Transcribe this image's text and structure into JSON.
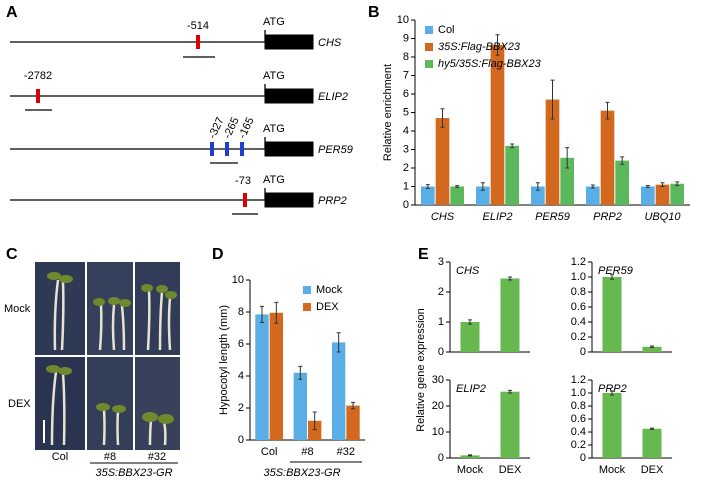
{
  "panel_labels": [
    "A",
    "B",
    "C",
    "D",
    "E"
  ],
  "gene_diagram": {
    "rows": [
      {
        "gene": "CHS",
        "start": "ATG",
        "sites": [
          "-514"
        ]
      },
      {
        "gene": "ELIP2",
        "start": "ATG",
        "sites": [
          "-2782"
        ]
      },
      {
        "gene": "PER59",
        "start": "ATG",
        "sites": [
          "-327",
          "-265",
          "-165"
        ]
      },
      {
        "gene": "PRP2",
        "start": "ATG",
        "sites": [
          "-73"
        ]
      }
    ]
  },
  "seedling_photos": {
    "rows": [
      "Mock",
      "DEX"
    ],
    "columns": [
      "Col",
      "#8",
      "#32"
    ],
    "group_label": "35S:BBX23-GR"
  },
  "panel_e_ylabel": "Relative gene expression",
  "chart_data": [
    {
      "type": "bar",
      "ylabel": "Relative enrichment",
      "categories": [
        "CHS",
        "ELIP2",
        "PER59",
        "PRP2",
        "UBQ10"
      ],
      "series": [
        {
          "name": "Col",
          "color": "#5aaee6",
          "values": [
            1,
            1,
            1,
            1,
            1
          ],
          "errors": [
            0.1,
            0.2,
            0.2,
            0.08,
            0.05
          ]
        },
        {
          "name": "35S:Flag-BBX23",
          "color": "#d2691e",
          "values": [
            4.7,
            8.65,
            5.7,
            5.1,
            1.1
          ],
          "errors": [
            0.5,
            0.55,
            1.05,
            0.45,
            0.1
          ]
        },
        {
          "name": "hy5/35S:Flag-BBX23",
          "color": "#5cb85c",
          "values": [
            1.0,
            3.2,
            2.55,
            2.4,
            1.15
          ],
          "errors": [
            0.05,
            0.1,
            0.55,
            0.2,
            0.1
          ]
        }
      ],
      "ylim": [
        0,
        10
      ],
      "yticks": [
        0,
        1,
        2,
        3,
        4,
        5,
        6,
        7,
        8,
        9,
        10
      ],
      "legend": "upper left"
    },
    {
      "type": "bar",
      "ylabel": "Hypocotyl length (mm)",
      "categories": [
        "Col",
        "#8",
        "#32"
      ],
      "series": [
        {
          "name": "Mock",
          "color": "#5aaee6",
          "values": [
            7.85,
            4.2,
            6.1
          ],
          "errors": [
            0.5,
            0.4,
            0.6
          ]
        },
        {
          "name": "DEX",
          "color": "#d2691e",
          "values": [
            7.95,
            1.2,
            2.15
          ],
          "errors": [
            0.65,
            0.55,
            0.2
          ]
        }
      ],
      "ylim": [
        0,
        10
      ],
      "yticks": [
        0,
        2,
        4,
        6,
        8,
        10
      ],
      "legend": "upper right"
    },
    {
      "type": "bar",
      "title": "CHS",
      "categories": [
        null,
        null
      ],
      "series": [
        {
          "color": "#66b84f",
          "values": [
            1.0,
            2.45
          ],
          "errors": [
            0.07,
            0.05
          ]
        }
      ],
      "ylim": [
        0,
        3
      ],
      "yticks": [
        0,
        1,
        2,
        3
      ]
    },
    {
      "type": "bar",
      "title": "PER59",
      "categories": [
        null,
        null
      ],
      "series": [
        {
          "color": "#66b84f",
          "values": [
            1.0,
            0.07
          ],
          "errors": [
            0.03,
            0.01
          ]
        }
      ],
      "ylim": [
        0,
        1.2
      ],
      "yticks": [
        0,
        0.2,
        0.4,
        0.6,
        0.8,
        {
          "value": 1,
          "label": "1.0"
        },
        1.2
      ]
    },
    {
      "type": "bar",
      "title": "ELIP2",
      "categories": [
        "Mock",
        "DEX"
      ],
      "series": [
        {
          "color": "#66b84f",
          "values": [
            1,
            25.5
          ],
          "errors": [
            0.2,
            0.5
          ]
        }
      ],
      "ylim": [
        0,
        30
      ],
      "yticks": [
        0,
        10,
        20,
        30
      ]
    },
    {
      "type": "bar",
      "title": "PRP2",
      "categories": [
        "Mock",
        "DEX"
      ],
      "series": [
        {
          "color": "#66b84f",
          "values": [
            1.0,
            0.45
          ],
          "errors": [
            0.03,
            0.01
          ]
        }
      ],
      "ylim": [
        0,
        1.2
      ],
      "yticks": [
        0,
        0.2,
        0.4,
        0.6,
        0.8,
        {
          "value": 1,
          "label": "1.0"
        },
        1.2
      ]
    }
  ]
}
